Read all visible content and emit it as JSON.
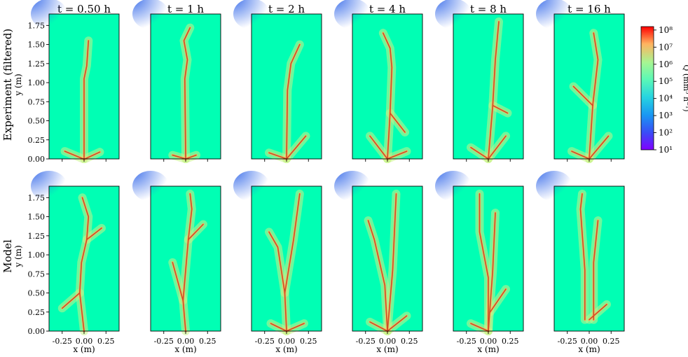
{
  "chart_data": {
    "type": "heatmap",
    "rows": [
      {
        "label": "Experiment (filtered)",
        "ylabel": "y (m)"
      },
      {
        "label": "Model",
        "ylabel": "y (m)"
      }
    ],
    "time_labels": [
      "t = 0.50 h",
      "t = 1 h",
      "t = 2 h",
      "t = 4 h",
      "t = 8 h",
      "t = 16 h"
    ],
    "xlabel": "x (m)",
    "x_ticks": [
      "-0.25",
      "0.00",
      "0.25"
    ],
    "x_tick_values": [
      -0.25,
      0.0,
      0.25
    ],
    "xlim": [
      -0.4,
      0.4
    ],
    "y_ticks": [
      "0.00",
      "0.25",
      "0.50",
      "0.75",
      "1.00",
      "1.25",
      "1.50",
      "1.75"
    ],
    "y_tick_values": [
      0,
      0.25,
      0.5,
      0.75,
      1.0,
      1.25,
      1.5,
      1.75
    ],
    "ylim": [
      0,
      1.9
    ],
    "colorbar": {
      "label": "Q (mm³ h⁻¹)",
      "scale": "log",
      "ticks": [
        "10⁸",
        "10⁷",
        "10⁶",
        "10⁵",
        "10⁴",
        "10³",
        "10²",
        "10¹"
      ],
      "tick_exponents": [
        8,
        7,
        6,
        5,
        4,
        3,
        2,
        1
      ],
      "range": [
        1,
        8.2
      ],
      "colormap": "rainbow"
    },
    "background_level": 4.6,
    "channel_level": 7.5,
    "panels": [
      {
        "row": 0,
        "time": "t = 0.50 h",
        "channels": [
          [
            [
              0,
              0
            ],
            [
              0,
              1.05
            ],
            [
              0.03,
              1.22
            ],
            [
              0.05,
              1.55
            ]
          ],
          [
            [
              -0.01,
              0
            ],
            [
              -0.22,
              0.1
            ]
          ],
          [
            [
              0.01,
              0
            ],
            [
              0.18,
              0.09
            ]
          ]
        ]
      },
      {
        "row": 0,
        "time": "t = 1 h",
        "channels": [
          [
            [
              0,
              0
            ],
            [
              -0.01,
              1.05
            ],
            [
              0.02,
              1.3
            ],
            [
              -0.02,
              1.55
            ],
            [
              0.05,
              1.72
            ]
          ],
          [
            [
              0,
              0
            ],
            [
              -0.15,
              0.05
            ]
          ],
          [
            [
              0,
              0
            ],
            [
              0.12,
              0.05
            ]
          ]
        ]
      },
      {
        "row": 0,
        "time": "t = 2 h",
        "channels": [
          [
            [
              0,
              0
            ],
            [
              0.01,
              0.9
            ],
            [
              0.05,
              1.25
            ],
            [
              0.15,
              1.5
            ]
          ],
          [
            [
              0,
              0
            ],
            [
              -0.2,
              0.08
            ]
          ],
          [
            [
              0,
              0
            ],
            [
              0.22,
              0.3
            ]
          ]
        ]
      },
      {
        "row": 0,
        "time": "t = 4 h",
        "channels": [
          [
            [
              0,
              0
            ],
            [
              0.03,
              0.6
            ],
            [
              0.05,
              1.2
            ],
            [
              0.03,
              1.45
            ],
            [
              -0.05,
              1.65
            ]
          ],
          [
            [
              0,
              0
            ],
            [
              -0.2,
              0.3
            ]
          ],
          [
            [
              0.03,
              0.6
            ],
            [
              0.2,
              0.35
            ]
          ],
          [
            [
              0,
              0
            ],
            [
              0.22,
              0.1
            ]
          ]
        ]
      },
      {
        "row": 0,
        "time": "t = 8 h",
        "channels": [
          [
            [
              0,
              0
            ],
            [
              0.05,
              0.7
            ],
            [
              0.08,
              1.3
            ],
            [
              0.12,
              1.8
            ]
          ],
          [
            [
              0,
              0
            ],
            [
              0.2,
              0.3
            ]
          ],
          [
            [
              0,
              0
            ],
            [
              -0.2,
              0.15
            ]
          ],
          [
            [
              0.05,
              0.7
            ],
            [
              0.22,
              0.6
            ]
          ]
        ]
      },
      {
        "row": 0,
        "time": "t = 16 h",
        "channels": [
          [
            [
              0,
              0
            ],
            [
              0.04,
              0.7
            ],
            [
              0.1,
              1.3
            ],
            [
              0.05,
              1.65
            ]
          ],
          [
            [
              0,
              0
            ],
            [
              0.22,
              0.3
            ]
          ],
          [
            [
              0,
              0
            ],
            [
              -0.2,
              0.1
            ]
          ],
          [
            [
              0.04,
              0.7
            ],
            [
              -0.18,
              0.95
            ]
          ]
        ]
      },
      {
        "row": 1,
        "time": "t = 0.50 h",
        "channels": [
          [
            [
              0,
              0
            ],
            [
              -0.05,
              0.5
            ],
            [
              -0.03,
              0.9
            ],
            [
              0.03,
              1.2
            ],
            [
              0.05,
              1.5
            ],
            [
              -0.02,
              1.75
            ]
          ],
          [
            [
              -0.05,
              0.5
            ],
            [
              -0.25,
              0.3
            ]
          ],
          [
            [
              0.03,
              1.2
            ],
            [
              0.2,
              1.35
            ]
          ]
        ]
      },
      {
        "row": 1,
        "time": "t = 1 h",
        "channels": [
          [
            [
              0,
              0
            ],
            [
              -0.03,
              0.4
            ],
            [
              0,
              0.8
            ],
            [
              0.03,
              1.2
            ],
            [
              0.07,
              1.6
            ],
            [
              0.05,
              1.8
            ]
          ],
          [
            [
              -0.03,
              0.4
            ],
            [
              -0.15,
              0.9
            ]
          ],
          [
            [
              0.03,
              1.2
            ],
            [
              0.2,
              1.4
            ]
          ]
        ]
      },
      {
        "row": 1,
        "time": "t = 2 h",
        "channels": [
          [
            [
              0,
              0
            ],
            [
              -0.02,
              0.5
            ],
            [
              -0.1,
              1.1
            ],
            [
              -0.2,
              1.3
            ]
          ],
          [
            [
              -0.02,
              0.5
            ],
            [
              0.08,
              1.2
            ],
            [
              0.15,
              1.8
            ]
          ],
          [
            [
              0,
              0
            ],
            [
              0.2,
              0.1
            ]
          ],
          [
            [
              0,
              0
            ],
            [
              -0.18,
              0.1
            ]
          ]
        ]
      },
      {
        "row": 1,
        "time": "t = 4 h",
        "channels": [
          [
            [
              0,
              0
            ],
            [
              -0.03,
              0.6
            ],
            [
              -0.15,
              1.2
            ],
            [
              -0.22,
              1.45
            ]
          ],
          [
            [
              0,
              0
            ],
            [
              0.06,
              0.8
            ],
            [
              0.1,
              1.8
            ]
          ],
          [
            [
              0,
              0
            ],
            [
              0.22,
              0.2
            ]
          ],
          [
            [
              0,
              0
            ],
            [
              -0.2,
              0.12
            ]
          ]
        ]
      },
      {
        "row": 1,
        "time": "t = 8 h",
        "channels": [
          [
            [
              0,
              0
            ],
            [
              0,
              0.7
            ],
            [
              -0.1,
              1.3
            ],
            [
              -0.1,
              1.8
            ]
          ],
          [
            [
              0,
              0
            ],
            [
              0.05,
              0.8
            ],
            [
              0.08,
              1.55
            ]
          ],
          [
            [
              0.02,
              0.25
            ],
            [
              0.2,
              0.55
            ]
          ],
          [
            [
              0,
              0
            ],
            [
              -0.2,
              0.1
            ]
          ]
        ]
      },
      {
        "row": 1,
        "time": "t = 16 h",
        "channels": [
          [
            [
              -0.05,
              0.15
            ],
            [
              -0.05,
              0.8
            ],
            [
              -0.1,
              1.6
            ],
            [
              -0.08,
              1.8
            ]
          ],
          [
            [
              0.05,
              0.15
            ],
            [
              0.05,
              0.9
            ],
            [
              0.1,
              1.45
            ]
          ],
          [
            [
              0,
              0.15
            ],
            [
              0.2,
              0.35
            ]
          ]
        ]
      }
    ]
  }
}
